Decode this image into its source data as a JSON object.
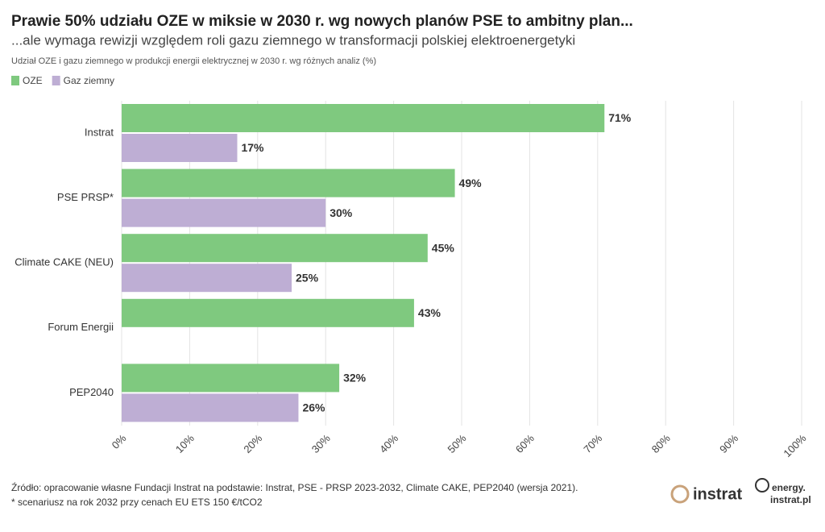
{
  "chart_data": {
    "type": "bar",
    "orientation": "horizontal",
    "title": "Prawie 50% udziału OZE w miksie w 2030 r. wg nowych planów PSE to ambitny plan...",
    "subtitle": "...ale wymaga rewizji względem roli gazu ziemnego w transformacji polskiej elektroenergetyki",
    "axis_label": "Udział OZE i gazu ziemnego w produkcji energii elektrycznej w 2030 r. wg różnych analiz (%)",
    "categories": [
      "Instrat",
      "PSE PRSP*",
      "Climate CAKE (NEU)",
      "Forum Energii",
      "PEP2040"
    ],
    "series": [
      {
        "name": "OZE",
        "color": "#7fc97f",
        "values": [
          71,
          49,
          45,
          43,
          32
        ],
        "value_labels": [
          "71%",
          "49%",
          "45%",
          "43%",
          "32%"
        ]
      },
      {
        "name": "Gaz ziemny",
        "color": "#beaed4",
        "values": [
          17,
          30,
          25,
          null,
          26
        ],
        "value_labels": [
          "17%",
          "30%",
          "25%",
          null,
          "26%"
        ]
      }
    ],
    "xlim": [
      0,
      100
    ],
    "xticks": [
      {
        "value": 0,
        "label": "0%"
      },
      {
        "value": 10,
        "label": "10%"
      },
      {
        "value": 20,
        "label": "20%"
      },
      {
        "value": 30,
        "label": "30%"
      },
      {
        "value": 40,
        "label": "40%"
      },
      {
        "value": 50,
        "label": "50%"
      },
      {
        "value": 60,
        "label": "60%"
      },
      {
        "value": 70,
        "label": "70%"
      },
      {
        "value": 80,
        "label": "80%"
      },
      {
        "value": 90,
        "label": "90%"
      },
      {
        "value": 100,
        "label": "100%"
      }
    ],
    "grid": true,
    "source": "Źródło: opracowanie własne Fundacji Instrat na podstawie: Instrat, PSE - PRSP 2023-2032, Climate CAKE, PEP2040 (wersja 2021).",
    "note": "* scenariusz na rok 2032 przy cenach EU ETS 150 €/tCO2",
    "logos": [
      "instrat",
      "energy.",
      "instrat.pl"
    ]
  }
}
